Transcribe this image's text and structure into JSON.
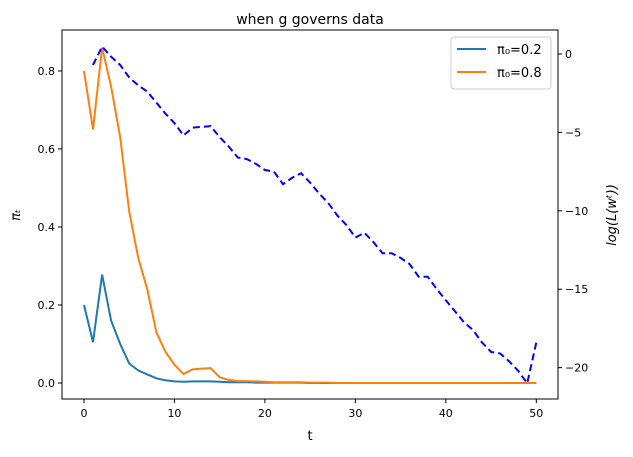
{
  "chart_data": {
    "type": "line",
    "title": "when g governs data",
    "xlabel": "t",
    "ylabel": "πₜ",
    "ylabel_right": "log(L(wᵗ))",
    "xlim": [
      -2.43,
      52.4
    ],
    "ylim": [
      -0.041,
      0.905
    ],
    "ylim_right": [
      -22.0,
      1.53
    ],
    "xticks": [
      0,
      10,
      20,
      30,
      40,
      50
    ],
    "yticks": [
      "0.0",
      "0.2",
      "0.4",
      "0.6",
      "0.8"
    ],
    "yticks_right": [
      "0",
      "−5",
      "−10",
      "−15",
      "−20"
    ],
    "grid": false,
    "legend_position": "top-right",
    "series": [
      {
        "name": "π₀=0.2",
        "axis": "left",
        "color": "#1f77b4",
        "x": [
          0,
          1,
          2,
          3,
          4,
          5,
          6,
          7,
          8,
          9,
          10,
          11,
          12,
          13,
          14,
          15,
          16,
          17,
          18,
          19,
          20,
          21,
          22,
          23,
          24,
          25,
          26,
          27,
          28,
          29,
          30,
          31,
          32,
          33,
          34,
          35,
          36,
          37,
          38,
          39,
          40,
          41,
          42,
          43,
          44,
          45,
          46,
          47,
          48,
          49,
          50
        ],
        "values": [
          0.2,
          0.105,
          0.278,
          0.16,
          0.1,
          0.05,
          0.032,
          0.022,
          0.012,
          0.007,
          0.004,
          0.003,
          0.004,
          0.004,
          0.004,
          0.003,
          0.002,
          0.002,
          0.002,
          0.001,
          0.001,
          0.001,
          0.001,
          0.001,
          0.001,
          0,
          0,
          0,
          0,
          0,
          0,
          0,
          0,
          0,
          0,
          0,
          0,
          0,
          0,
          0,
          0,
          0,
          0,
          0,
          0,
          0,
          0,
          0,
          0,
          0,
          0
        ]
      },
      {
        "name": "π₀=0.8",
        "axis": "left",
        "color": "#ff7f0e",
        "x": [
          0,
          1,
          2,
          3,
          4,
          5,
          6,
          7,
          8,
          9,
          10,
          11,
          12,
          13,
          14,
          15,
          16,
          17,
          18,
          19,
          20,
          21,
          22,
          23,
          24,
          25,
          26,
          27,
          28,
          29,
          30,
          31,
          32,
          33,
          34,
          35,
          36,
          37,
          38,
          39,
          40,
          41,
          42,
          43,
          44,
          45,
          46,
          47,
          48,
          49,
          50
        ],
        "values": [
          0.8,
          0.65,
          0.86,
          0.76,
          0.63,
          0.44,
          0.32,
          0.24,
          0.13,
          0.08,
          0.047,
          0.023,
          0.035,
          0.037,
          0.038,
          0.015,
          0.008,
          0.005,
          0.005,
          0.004,
          0.003,
          0.002,
          0.002,
          0.002,
          0.002,
          0.001,
          0.001,
          0.001,
          0,
          0,
          0,
          0,
          0,
          0,
          0,
          0,
          0,
          0,
          0,
          0,
          0,
          0,
          0,
          0,
          0,
          0,
          0,
          0,
          0,
          0,
          0
        ]
      },
      {
        "axis": "right",
        "color": "#0000ff",
        "dashed": true,
        "x": [
          1,
          2,
          3,
          4,
          5,
          6,
          7,
          8,
          9,
          10,
          11,
          12,
          13,
          14,
          15,
          16,
          17,
          18,
          19,
          20,
          21,
          22,
          23,
          24,
          25,
          26,
          27,
          28,
          29,
          30,
          31,
          32,
          33,
          34,
          35,
          36,
          37,
          38,
          39,
          40,
          41,
          42,
          43,
          44,
          45,
          46,
          47,
          48,
          49,
          50
        ],
        "values": [
          -0.7,
          0.47,
          -0.17,
          -0.7,
          -1.5,
          -2.0,
          -2.4,
          -3.1,
          -3.8,
          -4.4,
          -5.2,
          -4.7,
          -4.65,
          -4.6,
          -5.3,
          -5.9,
          -6.6,
          -6.7,
          -7.0,
          -7.4,
          -7.5,
          -8.3,
          -7.9,
          -7.6,
          -8.2,
          -8.9,
          -9.5,
          -10.3,
          -10.9,
          -11.7,
          -11.4,
          -12.0,
          -12.7,
          -12.7,
          -13.0,
          -13.4,
          -14.2,
          -14.2,
          -15.0,
          -15.7,
          -16.4,
          -17.1,
          -17.6,
          -18.4,
          -19.0,
          -19.1,
          -19.6,
          -20.2,
          -21.0,
          -18.4
        ]
      }
    ]
  }
}
